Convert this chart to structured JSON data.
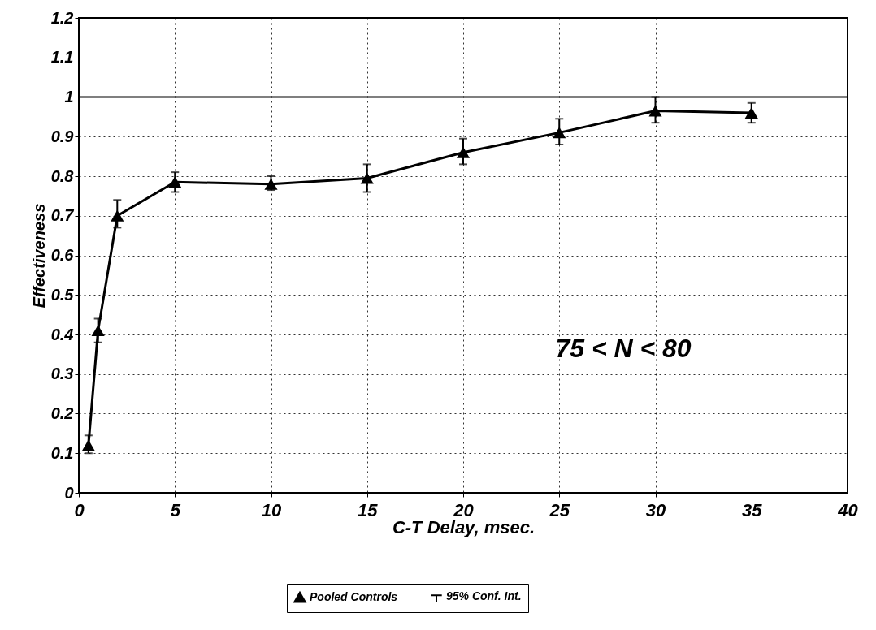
{
  "chart_data": {
    "type": "line",
    "xlabel": "C-T Delay, msec.",
    "ylabel": "Effectiveness",
    "x": [
      0.5,
      1,
      2,
      5,
      10,
      15,
      20,
      25,
      30,
      35
    ],
    "series": [
      {
        "name": "Pooled Controls",
        "color": "#000000",
        "values": [
          0.12,
          0.41,
          0.7,
          0.785,
          0.78,
          0.795,
          0.86,
          0.91,
          0.965,
          0.96
        ],
        "errors": [
          [
            0.1,
            0.145
          ],
          [
            0.38,
            0.44
          ],
          [
            0.67,
            0.74
          ],
          [
            0.76,
            0.81
          ],
          [
            0.765,
            0.8
          ],
          [
            0.76,
            0.83
          ],
          [
            0.83,
            0.895
          ],
          [
            0.88,
            0.945
          ],
          [
            0.935,
            1.0
          ],
          [
            0.935,
            0.985
          ]
        ]
      }
    ],
    "xlim": [
      0,
      40
    ],
    "xticks": [
      0,
      5,
      10,
      15,
      20,
      25,
      30,
      35,
      40
    ],
    "ylim": [
      0,
      1.2
    ],
    "yticks": [
      0,
      0.1,
      0.2,
      0.3,
      0.4,
      0.5,
      0.6,
      0.7,
      0.8,
      0.9,
      1,
      1.1,
      1.2
    ],
    "ref_lines": [
      {
        "axis": "y",
        "value": 1,
        "color": "#000000"
      }
    ],
    "annotations": [
      "75 < N < 80",
      "95% Conf. Int."
    ],
    "grid": true,
    "legend": "bottom",
    "marker": "triangle",
    "line_style": "solid"
  }
}
